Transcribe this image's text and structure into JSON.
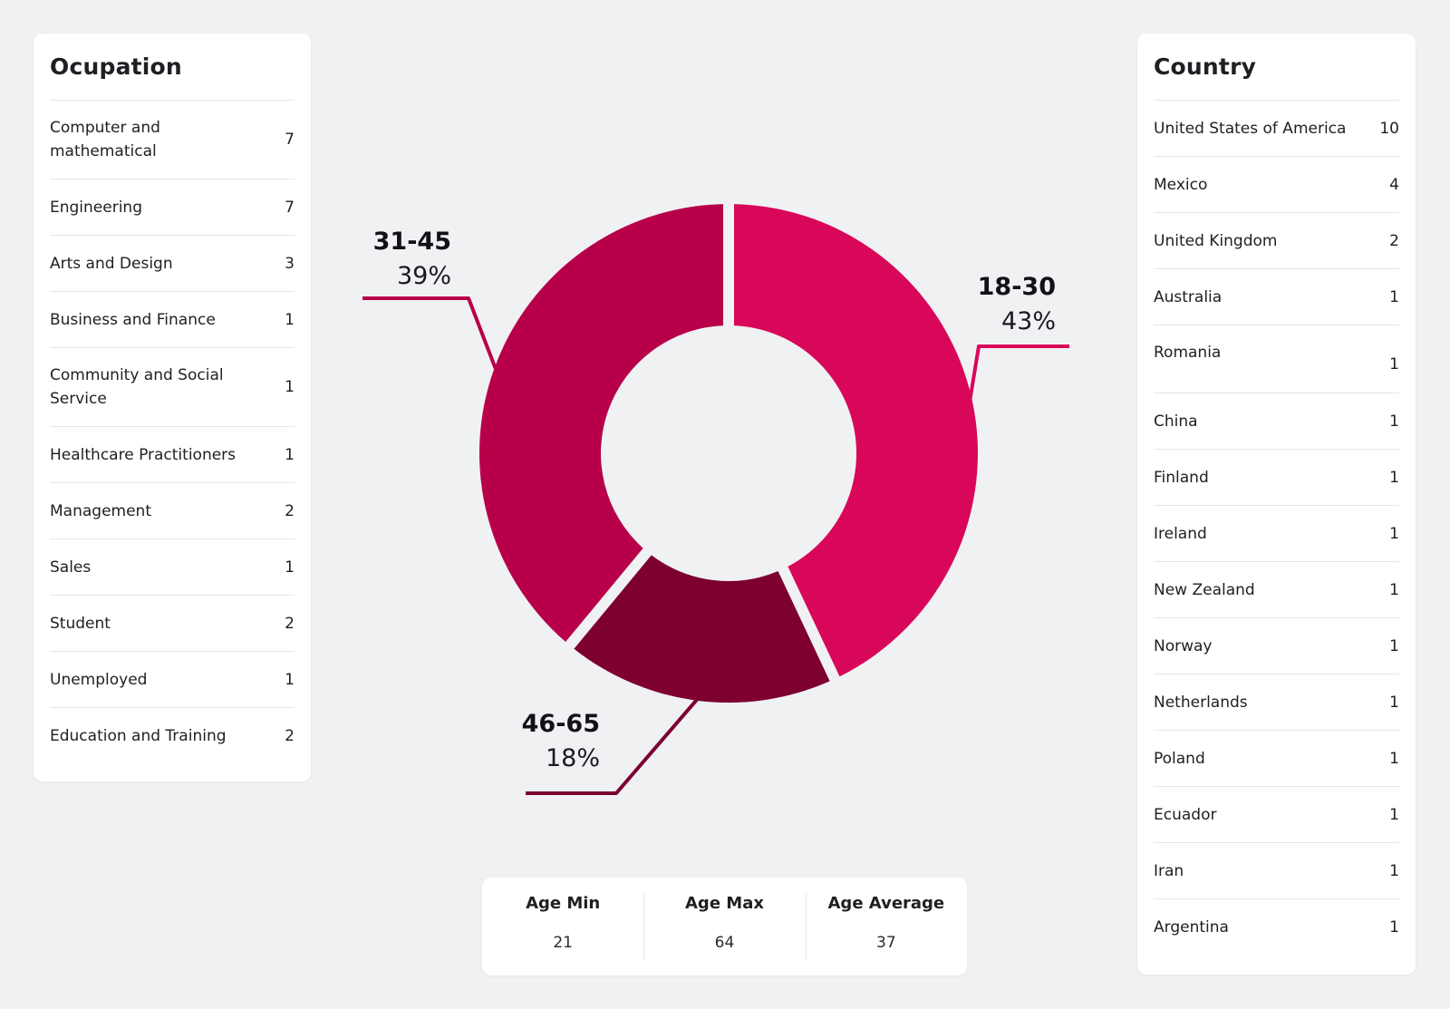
{
  "occupation": {
    "title": "Ocupation",
    "items": [
      {
        "label": "Computer and mathematical",
        "count": "7"
      },
      {
        "label": "Engineering",
        "count": "7"
      },
      {
        "label": "Arts and Design",
        "count": "3"
      },
      {
        "label": "Business and Finance",
        "count": "1"
      },
      {
        "label": "Community and Social Service",
        "count": "1"
      },
      {
        "label": "Healthcare Practitioners",
        "count": "1"
      },
      {
        "label": "Management",
        "count": "2"
      },
      {
        "label": "Sales",
        "count": "1"
      },
      {
        "label": "Student",
        "count": "2"
      },
      {
        "label": "Unemployed",
        "count": "1"
      },
      {
        "label": "Education and Training",
        "count": "2"
      }
    ]
  },
  "country": {
    "title": "Country",
    "items": [
      {
        "label": "United States of America",
        "count": "10"
      },
      {
        "label": "Mexico",
        "count": "4"
      },
      {
        "label": "United Kingdom",
        "count": "2"
      },
      {
        "label": "Australia",
        "count": "1"
      },
      {
        "label": "Romania",
        "count": "1"
      },
      {
        "label": "China",
        "count": "1"
      },
      {
        "label": "Finland",
        "count": "1"
      },
      {
        "label": "Ireland",
        "count": "1"
      },
      {
        "label": "New Zealand",
        "count": "1"
      },
      {
        "label": "Norway",
        "count": "1"
      },
      {
        "label": "Netherlands",
        "count": "1"
      },
      {
        "label": "Poland",
        "count": "1"
      },
      {
        "label": "Ecuador",
        "count": "1"
      },
      {
        "label": "Iran",
        "count": "1"
      },
      {
        "label": "Argentina",
        "count": "1"
      }
    ]
  },
  "chart_data": {
    "type": "pie",
    "title": "",
    "categories": [
      "18-30",
      "46-65",
      "31-45"
    ],
    "values": [
      43,
      18,
      39
    ],
    "labels": [
      "43%",
      "18%",
      "39%"
    ],
    "colors": [
      "#d90759",
      "#7d0030",
      "#b8004a"
    ]
  },
  "stats": [
    {
      "label": "Age Min",
      "value": "21"
    },
    {
      "label": "Age Max",
      "value": "64"
    },
    {
      "label": "Age Average",
      "value": "37"
    }
  ]
}
